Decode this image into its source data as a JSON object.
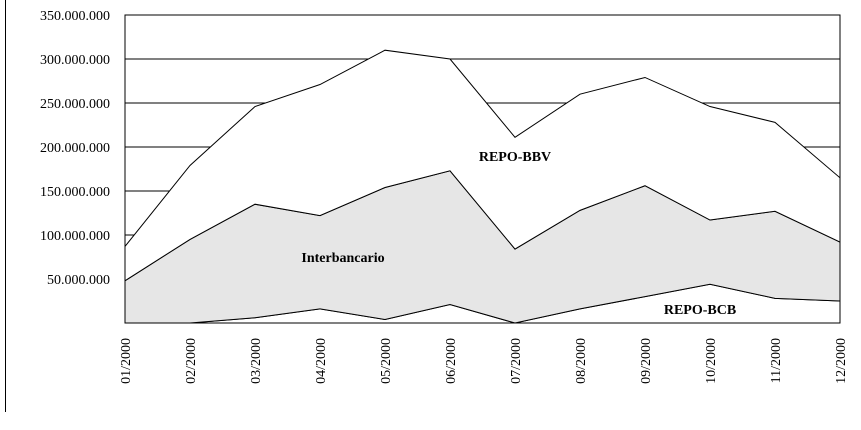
{
  "chart_data": {
    "type": "stacked_area",
    "categories": [
      "01/2000",
      "02/2000",
      "03/2000",
      "04/2000",
      "05/2000",
      "06/2000",
      "07/2000",
      "08/2000",
      "09/2000",
      "10/2000",
      "11/2000",
      "12/2000"
    ],
    "series": [
      {
        "name": "REPO-BCB",
        "color": "#ffffff",
        "values": [
          0,
          0,
          6000000,
          16000000,
          4000000,
          21000000,
          0,
          16000000,
          30000000,
          44000000,
          28000000,
          25000000
        ]
      },
      {
        "name": "Interbancario",
        "color": "#e6e6e6",
        "values": [
          48000000,
          95000000,
          129000000,
          106000000,
          150000000,
          152000000,
          84000000,
          112000000,
          126000000,
          73000000,
          99000000,
          67000000
        ]
      },
      {
        "name": "REPO-BBV",
        "color": "#ffffff",
        "values": [
          39000000,
          84000000,
          111000000,
          149000000,
          156000000,
          127000000,
          127000000,
          132000000,
          123000000,
          129000000,
          101000000,
          73000000
        ]
      }
    ],
    "ylim": [
      0,
      350000000
    ],
    "yticks": [
      {
        "value": 50000000,
        "label": "50.000.000"
      },
      {
        "value": 100000000,
        "label": "100.000.000"
      },
      {
        "value": 150000000,
        "label": "150.000.000"
      },
      {
        "value": 200000000,
        "label": "200.000.000"
      },
      {
        "value": 250000000,
        "label": "250.000.000"
      },
      {
        "value": 300000000,
        "label": "300.000.000"
      },
      {
        "value": 350000000,
        "label": "350.000.000"
      }
    ],
    "grid": true
  }
}
